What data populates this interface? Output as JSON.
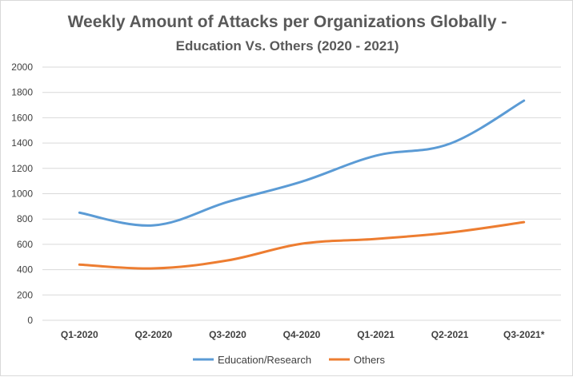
{
  "chart_data": {
    "type": "line",
    "title": "Weekly Amount of Attacks per Organizations Globally -",
    "subtitle": "Education Vs. Others (2020 - 2021)",
    "categories": [
      "Q1-2020",
      "Q2-2020",
      "Q3-2020",
      "Q4-2020",
      "Q1-2021",
      "Q2-2021",
      "Q3-2021*"
    ],
    "series": [
      {
        "name": "Education/Research",
        "color": "#5b9bd5",
        "values": [
          850,
          750,
          935,
          1095,
          1300,
          1395,
          1735
        ]
      },
      {
        "name": "Others",
        "color": "#ed7d31",
        "values": [
          440,
          410,
          473,
          605,
          643,
          693,
          775
        ]
      }
    ],
    "ylim": [
      0,
      2000
    ],
    "yticks": [
      "0",
      "200",
      "400",
      "600",
      "800",
      "1000",
      "1200",
      "1400",
      "1600",
      "1800",
      "2000"
    ],
    "grid": true,
    "legend": "bottom"
  }
}
